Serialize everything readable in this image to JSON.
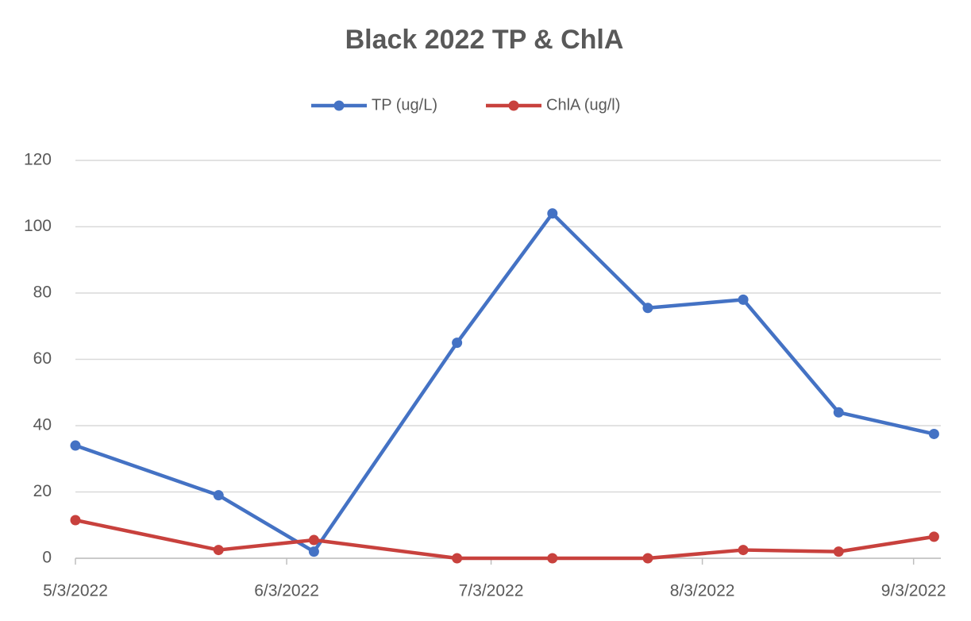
{
  "chart_data": {
    "type": "line",
    "title": "Black 2022 TP & ChlA",
    "x": [
      "2022-05-03",
      "2022-05-24",
      "2022-06-07",
      "2022-06-28",
      "2022-07-12",
      "2022-07-26",
      "2022-08-09",
      "2022-08-23",
      "2022-09-06"
    ],
    "series": [
      {
        "name": "TP (ug/L)",
        "color": "#4472c4",
        "values": [
          34,
          19,
          2,
          65,
          104,
          75.5,
          78,
          44,
          37.5
        ]
      },
      {
        "name": "ChlA (ug/l)",
        "color": "#c8413d",
        "values": [
          11.5,
          2.5,
          5.5,
          0,
          0,
          0,
          2.5,
          2,
          6.5
        ]
      }
    ],
    "xlim": [
      "2022-05-03",
      "2022-09-07"
    ],
    "xticks": [
      {
        "value": "2022-05-03",
        "label": "5/3/2022"
      },
      {
        "value": "2022-06-03",
        "label": "6/3/2022"
      },
      {
        "value": "2022-07-03",
        "label": "7/3/2022"
      },
      {
        "value": "2022-08-03",
        "label": "8/3/2022"
      },
      {
        "value": "2022-09-03",
        "label": "9/3/2022"
      }
    ],
    "ylim": [
      0,
      120
    ],
    "yticks": [
      0,
      20,
      40,
      60,
      80,
      100,
      120
    ],
    "grid": true,
    "legend": "top"
  }
}
